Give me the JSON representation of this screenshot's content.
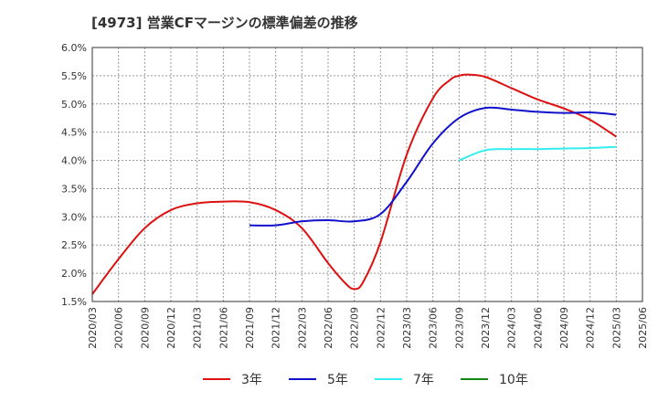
{
  "chart_data": {
    "type": "line",
    "title": "[4973]  営業CFマージンの標準偏差の推移",
    "xlabel": "",
    "ylabel": "",
    "ylim": [
      1.5,
      6.0
    ],
    "grid": true,
    "legend_position": "bottom",
    "x_ticks": [
      "2020/03",
      "2020/06",
      "2020/09",
      "2020/12",
      "2021/03",
      "2021/06",
      "2021/09",
      "2021/12",
      "2022/03",
      "2022/06",
      "2022/09",
      "2022/12",
      "2023/03",
      "2023/06",
      "2023/09",
      "2023/12",
      "2024/03",
      "2024/06",
      "2024/09",
      "2024/12",
      "2025/03",
      "2025/06"
    ],
    "y_ticks": [
      "1.5%",
      "2.0%",
      "2.5%",
      "3.0%",
      "3.5%",
      "4.0%",
      "4.5%",
      "5.0%",
      "5.5%",
      "6.0%"
    ],
    "series": [
      {
        "name": "3年",
        "color": "#dd1111",
        "x": [
          "2020/03",
          "2020/06",
          "2020/09",
          "2020/12",
          "2021/03",
          "2021/06",
          "2021/09",
          "2021/12",
          "2022/03",
          "2022/06",
          "2022/08",
          "2022/09",
          "2022/10",
          "2022/12",
          "2023/03",
          "2023/06",
          "2023/08",
          "2023/09",
          "2023/10",
          "2023/12",
          "2024/03",
          "2024/06",
          "2024/09",
          "2024/12",
          "2025/03"
        ],
        "values": [
          1.63,
          2.25,
          2.8,
          3.12,
          3.24,
          3.27,
          3.26,
          3.12,
          2.8,
          2.18,
          1.82,
          1.72,
          1.84,
          2.55,
          4.1,
          5.1,
          5.43,
          5.5,
          5.52,
          5.48,
          5.28,
          5.08,
          4.92,
          4.72,
          4.42
        ]
      },
      {
        "name": "5年",
        "color": "#1111cc",
        "x": [
          "2021/09",
          "2021/12",
          "2022/03",
          "2022/06",
          "2022/09",
          "2022/12",
          "2023/03",
          "2023/06",
          "2023/09",
          "2023/12",
          "2024/03",
          "2024/06",
          "2024/09",
          "2024/12",
          "2025/03"
        ],
        "values": [
          2.85,
          2.85,
          2.92,
          2.94,
          2.92,
          3.05,
          3.62,
          4.3,
          4.75,
          4.93,
          4.9,
          4.86,
          4.84,
          4.85,
          4.81
        ]
      },
      {
        "name": "7年",
        "color": "#33eeee",
        "x": [
          "2023/09",
          "2023/12",
          "2024/03",
          "2024/06",
          "2024/09",
          "2024/12",
          "2025/03"
        ],
        "values": [
          4.0,
          4.18,
          4.2,
          4.2,
          4.21,
          4.22,
          4.24
        ]
      },
      {
        "name": "10年",
        "color": "#118811",
        "x": [],
        "values": []
      }
    ]
  }
}
